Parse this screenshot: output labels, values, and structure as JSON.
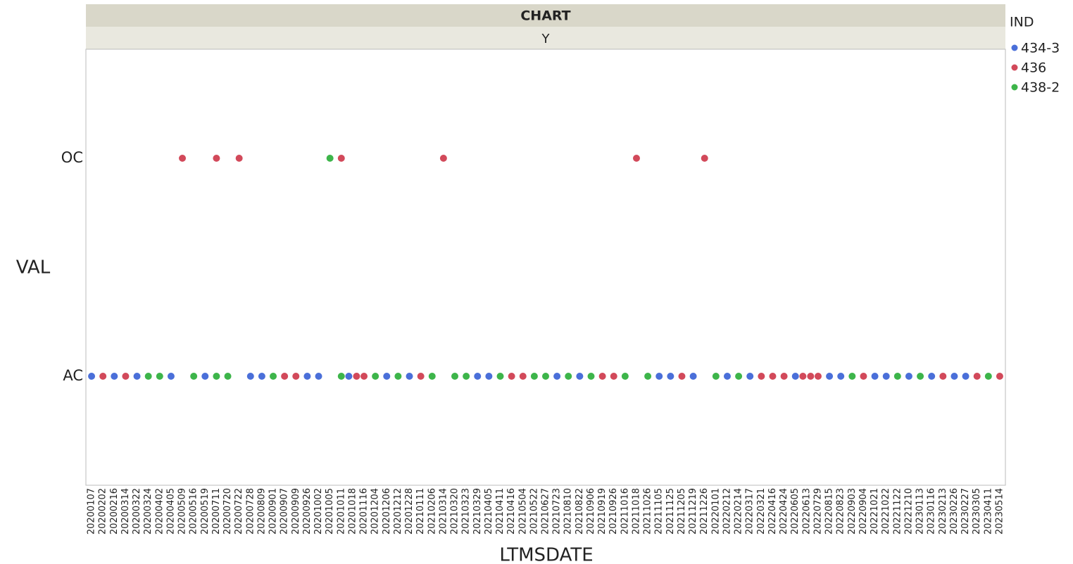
{
  "chart_data": {
    "type": "categorical-scatter",
    "title": "CHART",
    "subtitle": "Y",
    "x_label": "LTMSDATE",
    "y_label": "VAL",
    "legend_title": "IND",
    "categories": [
      "20200107",
      "20200202",
      "20200216",
      "20200314",
      "20200322",
      "20200324",
      "20200402",
      "20200405",
      "20200509",
      "20200516",
      "20200519",
      "20200711",
      "20200720",
      "20200722",
      "20200728",
      "20200809",
      "20200901",
      "20200907",
      "20200909",
      "20200926",
      "20201002",
      "20201005",
      "20201011",
      "20201018",
      "20201116",
      "20201204",
      "20201206",
      "20201212",
      "20201228",
      "20210111",
      "20210206",
      "20210314",
      "20210320",
      "20210323",
      "20210329",
      "20210405",
      "20210411",
      "20210416",
      "20210504",
      "20210522",
      "20210627",
      "20210723",
      "20210810",
      "20210822",
      "20210906",
      "20210919",
      "20210926",
      "20211016",
      "20211018",
      "20211026",
      "20211105",
      "20211125",
      "20211205",
      "20211219",
      "20211226",
      "20220101",
      "20220212",
      "20220214",
      "20220317",
      "20220321",
      "20220416",
      "20220424",
      "20220605",
      "20220613",
      "20220729",
      "20220815",
      "20220823",
      "20220903",
      "20220904",
      "20221021",
      "20221022",
      "20221122",
      "20221210",
      "20230113",
      "20230116",
      "20230213",
      "20230226",
      "20230227",
      "20230305",
      "20230411",
      "20230514"
    ],
    "y_categories": [
      "AC",
      "OC"
    ],
    "series": [
      {
        "name": "434-3",
        "color": "#4a6fd9",
        "x": [
          "20200107",
          "20200216",
          "20200322",
          "20200405",
          "20200519",
          "20200728",
          "20200809",
          "20200926",
          "20201002",
          "20201018",
          "20201206",
          "20201228",
          "20210329",
          "20210405",
          "20210723",
          "20210822",
          "20211105",
          "20211125",
          "20211219",
          "20220212",
          "20220317",
          "20220605",
          "20220815",
          "20220823",
          "20221021",
          "20221022",
          "20221210",
          "20230116",
          "20230226",
          "20230227"
        ],
        "values": [
          "AC",
          "AC",
          "AC",
          "AC",
          "AC",
          "AC",
          "AC",
          "AC",
          "AC",
          "AC",
          "AC",
          "AC",
          "AC",
          "AC",
          "AC",
          "AC",
          "AC",
          "AC",
          "AC",
          "AC",
          "AC",
          "AC",
          "AC",
          "AC",
          "AC",
          "AC",
          "AC",
          "AC",
          "AC",
          "AC"
        ]
      },
      {
        "name": "436",
        "color": "#d2495a",
        "x": [
          "20200202",
          "20200314",
          "20200509",
          "20200711",
          "20200722",
          "20200907",
          "20200909",
          "20201011",
          "20201018",
          "20201116",
          "20210111",
          "20210314",
          "20210416",
          "20210504",
          "20210919",
          "20210926",
          "20211018",
          "20211205",
          "20211226",
          "20220321",
          "20220416",
          "20220424",
          "20220613",
          "20220613",
          "20220729",
          "20220904",
          "20230213",
          "20230305",
          "20230514"
        ],
        "values": [
          "AC",
          "AC",
          "OC",
          "OC",
          "OC",
          "AC",
          "AC",
          "OC",
          "AC",
          "AC",
          "AC",
          "OC",
          "AC",
          "AC",
          "AC",
          "AC",
          "OC",
          "AC",
          "OC",
          "AC",
          "AC",
          "AC",
          "AC",
          "AC",
          "AC",
          "AC",
          "AC",
          "AC",
          "AC"
        ]
      },
      {
        "name": "438-2",
        "color": "#3db54a",
        "x": [
          "20200324",
          "20200402",
          "20200516",
          "20200711",
          "20200720",
          "20200901",
          "20201005",
          "20201011",
          "20201204",
          "20201212",
          "20210206",
          "20210320",
          "20210323",
          "20210411",
          "20210522",
          "20210627",
          "20210810",
          "20210906",
          "20211016",
          "20211026",
          "20220101",
          "20220214",
          "20220903",
          "20221122",
          "20230113",
          "20230411"
        ],
        "values": [
          "AC",
          "AC",
          "AC",
          "AC",
          "AC",
          "AC",
          "OC",
          "AC",
          "AC",
          "AC",
          "AC",
          "AC",
          "AC",
          "AC",
          "AC",
          "AC",
          "AC",
          "AC",
          "AC",
          "AC",
          "AC",
          "AC",
          "AC",
          "AC",
          "AC",
          "AC"
        ]
      }
    ]
  }
}
